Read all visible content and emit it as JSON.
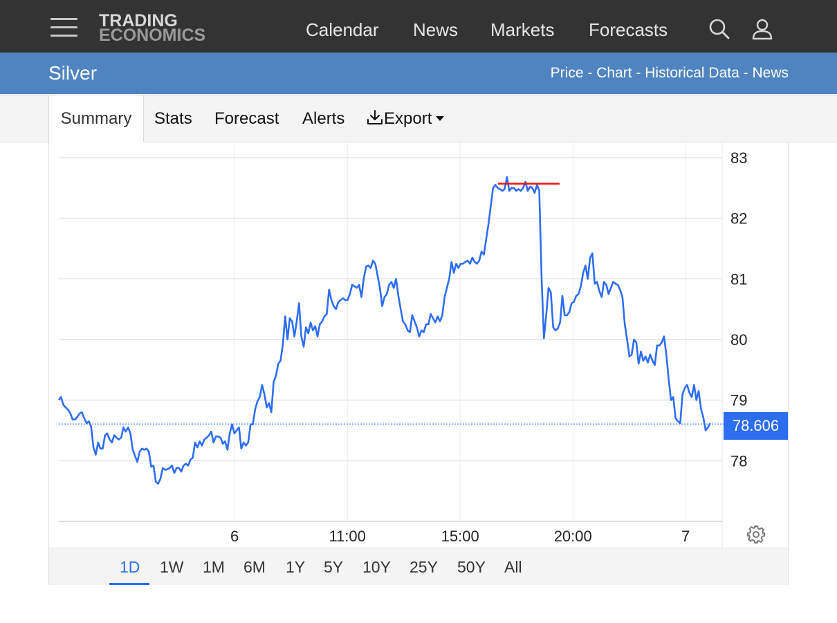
{
  "header": {
    "logo_line1": "TRADING",
    "logo_line2": "ECONOMICS",
    "nav": [
      "Calendar",
      "News",
      "Markets",
      "Forecasts"
    ],
    "icons": [
      "menu-icon",
      "search-icon",
      "user-icon"
    ]
  },
  "titlebar": {
    "title": "Silver",
    "links": [
      "Price",
      "Chart",
      "Historical Data",
      "News"
    ],
    "separator": "-"
  },
  "tabs": {
    "items": [
      "Summary",
      "Stats",
      "Forecast",
      "Alerts",
      "Export"
    ],
    "active": "Summary"
  },
  "chart": {
    "current_price": "78.606",
    "colors": {
      "line": "#2d6ef0",
      "highlight": "#ee1111",
      "grid": "#e4e4e4"
    }
  },
  "ranges": {
    "items": [
      "1D",
      "1W",
      "1M",
      "6M",
      "1Y",
      "5Y",
      "10Y",
      "25Y",
      "50Y",
      "All"
    ],
    "active": "1D"
  },
  "chart_data": {
    "type": "line",
    "ylim": [
      77,
      83.25
    ],
    "yticks": [
      78,
      79,
      80,
      81,
      82,
      83
    ],
    "xticks": [
      {
        "label": "6",
        "t": 0.265
      },
      {
        "label": "11:00",
        "t": 0.435
      },
      {
        "label": "15:00",
        "t": 0.605
      },
      {
        "label": "20:00",
        "t": 0.775
      },
      {
        "label": "7",
        "t": 0.945
      }
    ],
    "reference_price": 78.606,
    "high_marker": {
      "value": 82.57,
      "t_start": 0.662,
      "t_end": 0.755
    },
    "series": [
      {
        "values": [
          79.0,
          79.05,
          78.92,
          78.88,
          78.84,
          78.78,
          78.68,
          78.68,
          78.72,
          78.78,
          78.8,
          78.7,
          78.62,
          78.65,
          78.56,
          78.22,
          78.1,
          78.3,
          78.2,
          78.2,
          78.42,
          78.45,
          78.35,
          78.3,
          78.42,
          78.38,
          78.35,
          78.38,
          78.55,
          78.48,
          78.55,
          78.45,
          78.18,
          78.08,
          77.98,
          78.15,
          78.2,
          78.18,
          78.2,
          78.15,
          77.9,
          77.92,
          77.65,
          77.62,
          77.7,
          77.88,
          77.85,
          77.86,
          77.88,
          77.92,
          77.8,
          77.88,
          77.88,
          77.82,
          77.92,
          77.95,
          77.92,
          78.02,
          78.05,
          78.3,
          78.22,
          78.32,
          78.25,
          78.35,
          78.38,
          78.42,
          78.48,
          78.3,
          78.4,
          78.4,
          78.38,
          78.28,
          78.32,
          78.18,
          78.45,
          78.6,
          78.45,
          78.5,
          78.55,
          78.2,
          78.3,
          78.25,
          78.3,
          78.6,
          78.6,
          78.85,
          78.98,
          79.05,
          79.25,
          79.1,
          78.88,
          78.95,
          78.8,
          79.3,
          79.4,
          79.6,
          79.65,
          79.92,
          80.38,
          80.0,
          80.35,
          80.3,
          80.05,
          80.3,
          80.6,
          80.05,
          79.88,
          80.2,
          80.1,
          80.28,
          80.15,
          80.22,
          80.05,
          80.25,
          80.3,
          80.38,
          80.42,
          80.82,
          80.65,
          80.55,
          80.5,
          80.62,
          80.65,
          80.68,
          80.65,
          80.65,
          80.75,
          80.9,
          80.88,
          80.85,
          80.9,
          80.7,
          81.0,
          81.2,
          81.22,
          81.18,
          81.3,
          81.25,
          81.05,
          80.85,
          80.55,
          80.7,
          80.75,
          80.9,
          80.95,
          80.85,
          81.0,
          80.72,
          80.5,
          80.3,
          80.25,
          80.15,
          80.12,
          80.4,
          80.3,
          80.2,
          80.05,
          80.15,
          80.12,
          80.25,
          80.25,
          80.42,
          80.35,
          80.28,
          80.38,
          80.3,
          80.4,
          80.7,
          80.85,
          81.0,
          81.28,
          81.1,
          81.25,
          81.18,
          81.25,
          81.25,
          81.28,
          81.3,
          81.25,
          81.35,
          81.28,
          81.25,
          81.3,
          81.45,
          81.4,
          81.65,
          81.9,
          82.2,
          82.5,
          82.55,
          82.5,
          82.48,
          82.45,
          82.48,
          82.68,
          82.45,
          82.5,
          82.5,
          82.45,
          82.48,
          82.45,
          82.5,
          82.6,
          82.45,
          82.52,
          82.5,
          82.42,
          82.55,
          82.45,
          81.0,
          80.02,
          80.4,
          80.85,
          80.78,
          80.2,
          80.15,
          80.18,
          80.28,
          80.72,
          80.4,
          80.4,
          80.45,
          80.6,
          80.62,
          80.72,
          80.75,
          80.88,
          81.1,
          81.22,
          81.0,
          81.35,
          81.42,
          80.92,
          80.95,
          80.8,
          80.7,
          80.95,
          80.9,
          80.75,
          80.85,
          80.95,
          80.92,
          80.9,
          80.82,
          80.7,
          80.25,
          80.0,
          79.72,
          79.75,
          80.0,
          79.95,
          79.6,
          79.8,
          79.65,
          79.72,
          79.62,
          79.75,
          79.65,
          79.58,
          79.9,
          79.9,
          79.95,
          80.05,
          79.75,
          79.35,
          79.0,
          79.05,
          78.7,
          78.65,
          78.62,
          79.1,
          79.2,
          79.25,
          79.12,
          79.05,
          79.25,
          79.0,
          79.15,
          78.85,
          78.72,
          78.5,
          78.55,
          78.62
        ]
      }
    ]
  }
}
